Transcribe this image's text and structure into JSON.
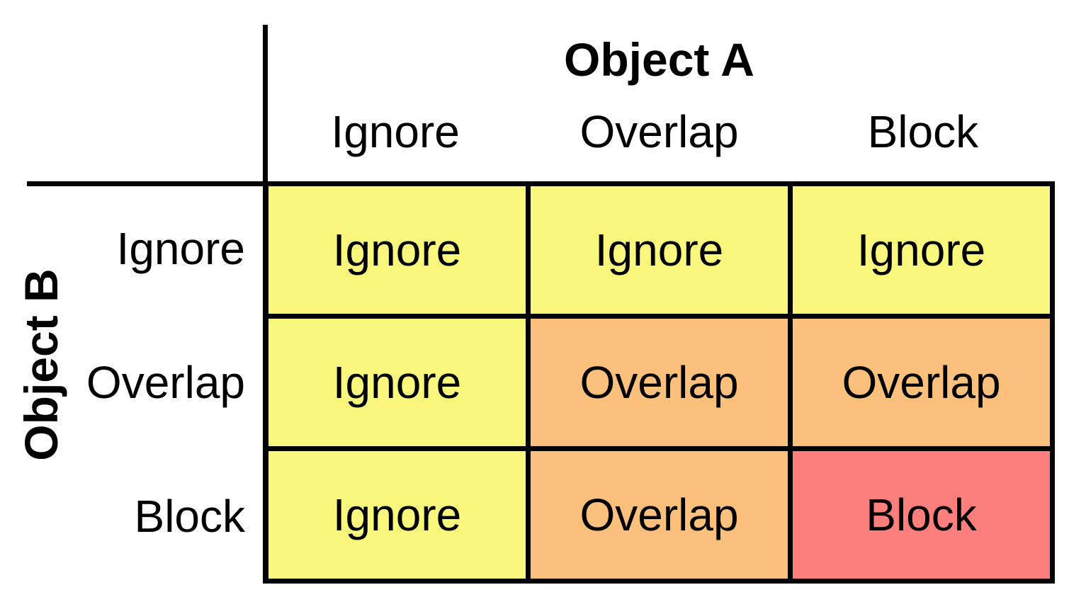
{
  "matrix": {
    "col_axis_title": "Object A",
    "row_axis_title": "Object B",
    "col_headers": [
      "Ignore",
      "Overlap",
      "Block"
    ],
    "row_headers": [
      "Ignore",
      "Overlap",
      "Block"
    ],
    "cells": [
      [
        {
          "label": "Ignore",
          "color": "yellow"
        },
        {
          "label": "Ignore",
          "color": "yellow"
        },
        {
          "label": "Ignore",
          "color": "yellow"
        }
      ],
      [
        {
          "label": "Ignore",
          "color": "yellow"
        },
        {
          "label": "Overlap",
          "color": "orange"
        },
        {
          "label": "Overlap",
          "color": "orange"
        }
      ],
      [
        {
          "label": "Ignore",
          "color": "yellow"
        },
        {
          "label": "Overlap",
          "color": "orange"
        },
        {
          "label": "Block",
          "color": "red"
        }
      ]
    ],
    "colors": {
      "yellow": "#F9F77C",
      "orange": "#FBC07C",
      "red": "#FD7F7D",
      "line": "#000000",
      "background": "#FFFFFF",
      "text": "#000000"
    }
  }
}
